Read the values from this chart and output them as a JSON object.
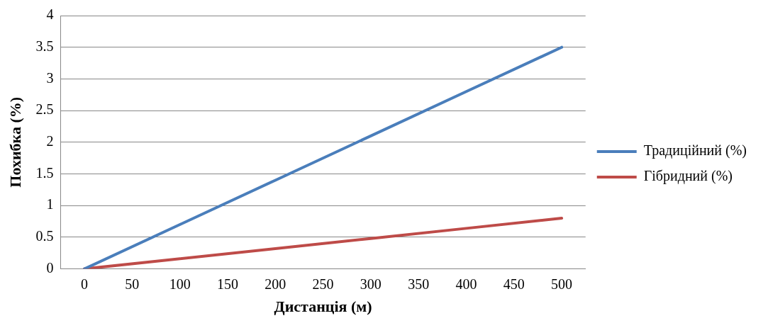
{
  "chart_data": {
    "type": "line",
    "xlabel": "Дистанція (м)",
    "ylabel": "Похибка (%)",
    "x": [
      0,
      100,
      200,
      300,
      400,
      500
    ],
    "series": [
      {
        "name": "Традиційний (%)",
        "color": "#4a7ebb",
        "values": [
          0,
          0.7,
          1.4,
          2.1,
          2.8,
          3.5
        ]
      },
      {
        "name": "Гібридний (%)",
        "color": "#be4b48",
        "values": [
          0,
          0.16,
          0.32,
          0.48,
          0.64,
          0.8
        ]
      }
    ],
    "xlim": [
      -25,
      525
    ],
    "xticks": [
      0,
      50,
      100,
      150,
      200,
      250,
      300,
      350,
      400,
      450,
      500
    ],
    "ylim": [
      0,
      4
    ],
    "yticks": [
      0,
      0.5,
      1,
      1.5,
      2,
      2.5,
      3,
      3.5,
      4
    ],
    "grid": "y",
    "legend": "right",
    "marker": "none",
    "line_style": "solid"
  }
}
